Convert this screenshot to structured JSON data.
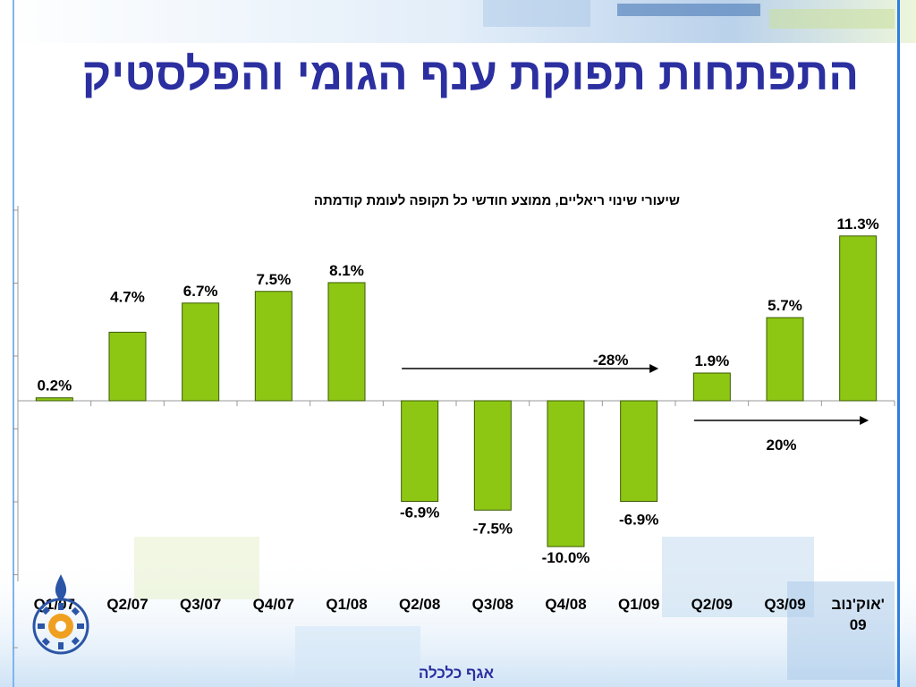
{
  "slide": {
    "title": "התפתחות תפוקת ענף הגומי והפלסטיק",
    "footer": "אגף כלכלה"
  },
  "colors": {
    "bar_fill": "#8dc714",
    "bar_stroke": "#3a5a00",
    "title": "#2b2fa0",
    "accent_blue": "#2f7de0"
  },
  "chart_data": {
    "type": "bar",
    "title": "שיעורי שינוי ריאליים, ממוצע חודשי כל תקופה לעומת קודמתה",
    "categories": [
      "Q1/07",
      "Q2/07",
      "Q3/07",
      "Q4/07",
      "Q1/08",
      "Q2/08",
      "Q3/08",
      "Q4/08",
      "Q1/09",
      "Q2/09",
      "Q3/09",
      "אוק'נוב' 09"
    ],
    "values": [
      0.2,
      4.7,
      6.7,
      7.5,
      8.1,
      -6.9,
      -7.5,
      -10.0,
      -6.9,
      1.9,
      5.7,
      11.3
    ],
    "data_labels": [
      "0.2%",
      "4.7%",
      "6.7%",
      "7.5%",
      "8.1%",
      "-6.9%",
      "-7.5%",
      "-10.0%",
      "-6.9%",
      "1.9%",
      "5.7%",
      "11.3%"
    ],
    "ylim": [
      -12,
      12
    ],
    "grid": false,
    "annotations": [
      {
        "text": "-28%",
        "from_category": "Q2/08",
        "to_category": "Q1/09"
      },
      {
        "text": "20%",
        "from_category": "Q2/09",
        "to_category": "אוק'נוב' 09"
      }
    ]
  }
}
